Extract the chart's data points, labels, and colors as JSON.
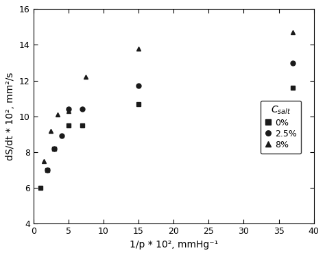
{
  "xlabel": "1/p * 10², mmHg⁻¹",
  "ylabel": "dS/dt * 10², mm²/s",
  "xlim": [
    0,
    40
  ],
  "ylim": [
    4,
    16
  ],
  "xticks": [
    0,
    5,
    10,
    15,
    20,
    25,
    30,
    35,
    40
  ],
  "yticks": [
    4,
    6,
    8,
    10,
    12,
    14,
    16
  ],
  "legend_entries": [
    "0%",
    "2.5%",
    "8%"
  ],
  "data_0pct": {
    "x": [
      1.0,
      2.0,
      3.0,
      5.0,
      7.0,
      15.0,
      37.0
    ],
    "y": [
      6.0,
      7.0,
      8.2,
      9.5,
      9.5,
      10.7,
      11.6
    ]
  },
  "data_2p5pct": {
    "x": [
      2.0,
      3.0,
      4.0,
      5.0,
      7.0,
      15.0,
      37.0
    ],
    "y": [
      7.0,
      8.2,
      8.9,
      10.4,
      10.4,
      11.7,
      13.0
    ]
  },
  "data_8pct": {
    "x": [
      1.5,
      2.5,
      3.5,
      5.0,
      7.5,
      15.0,
      37.0
    ],
    "y": [
      7.5,
      9.2,
      10.1,
      10.3,
      12.2,
      13.8,
      14.7
    ]
  },
  "marker_color": "#1a1a1a",
  "line_color": "#000000",
  "background_color": "#ffffff"
}
